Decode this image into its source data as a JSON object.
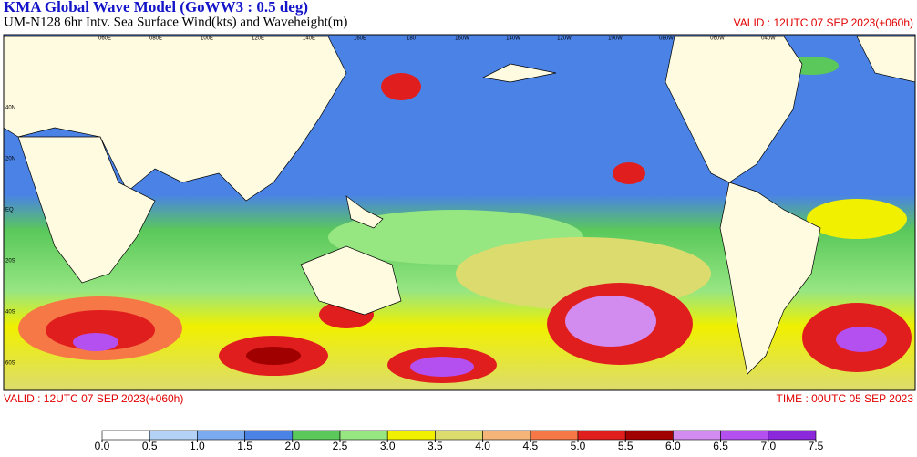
{
  "header": {
    "title": "KMA  Global Wave Model (GoWW3 : 0.5 deg)",
    "subtitle": "UM-N128  6hr Intv. Sea Surface Wind(kts) and Waveheight(m)",
    "valid": "VALID : 12UTC 07 SEP 2023(+060h)"
  },
  "map": {
    "lon_labels": [
      "060E",
      "080E",
      "100E",
      "120E",
      "140E",
      "160E",
      "180",
      "160W",
      "140W",
      "120W",
      "100W",
      "080W",
      "060W",
      "040W"
    ],
    "lat_labels": [
      "40N",
      "20N",
      "EQ",
      "20S",
      "40S",
      "60S"
    ]
  },
  "footer": {
    "valid": "VALID : 12UTC 07 SEP 2023(+060h)",
    "time": "TIME : 00UTC 05 SEP 2023"
  },
  "colorbar": {
    "ticks": [
      {
        "value": 0,
        "label": "0.0"
      },
      {
        "value": 0.5,
        "label": "0.5"
      },
      {
        "value": 1,
        "label": "1.0"
      },
      {
        "value": 1.5,
        "label": "1.5"
      },
      {
        "value": 2,
        "label": "2.0"
      },
      {
        "value": 2.5,
        "label": "2.5"
      },
      {
        "value": 3,
        "label": "3.0"
      },
      {
        "value": 3.5,
        "label": "3.5"
      },
      {
        "value": 4,
        "label": "4.0"
      },
      {
        "value": 4.5,
        "label": "4.5"
      },
      {
        "value": 5,
        "label": "5.0"
      },
      {
        "value": 5.5,
        "label": "5.5"
      },
      {
        "value": 6,
        "label": "6.0"
      },
      {
        "value": 6.5,
        "label": "6.5"
      },
      {
        "value": 7,
        "label": "7.0"
      },
      {
        "value": 7.5,
        "label": "7.5"
      }
    ],
    "colors": [
      "#ffffff",
      "#b4d2f5",
      "#7aaaf0",
      "#4a82e6",
      "#5ac85a",
      "#96e682",
      "#f0f000",
      "#dcdc6e",
      "#f5b478",
      "#f57846",
      "#e11e1e",
      "#a00000",
      "#d28cf0",
      "#b450f0",
      "#8c28dc"
    ]
  }
}
